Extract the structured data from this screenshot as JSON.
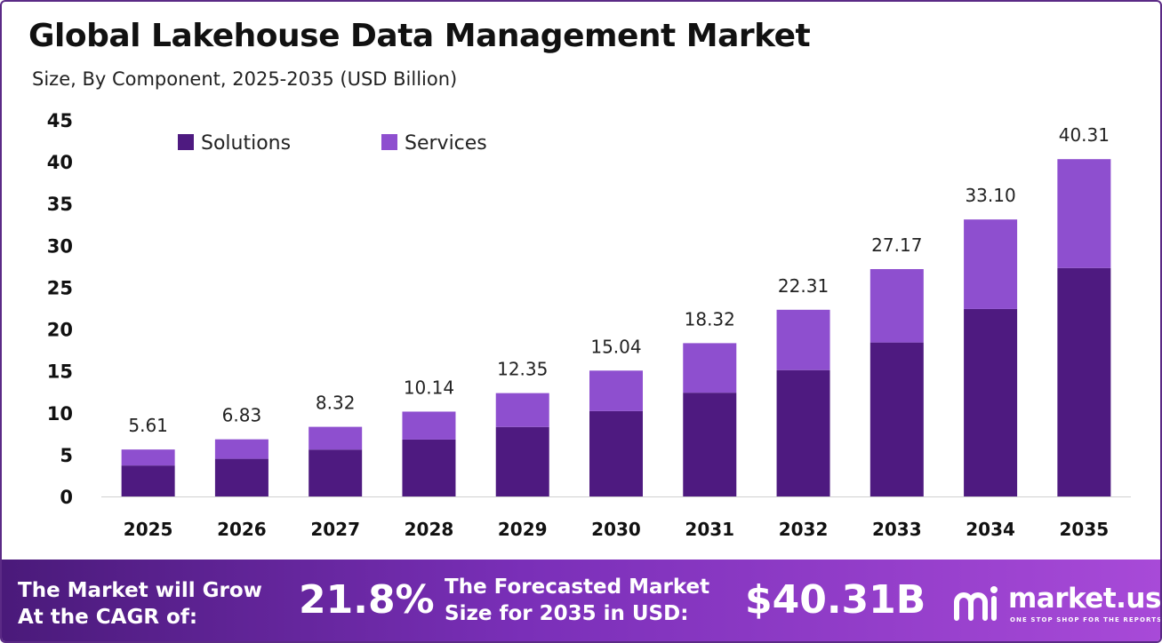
{
  "header": {
    "title": "Global Lakehouse Data Management Market",
    "subtitle": "Size, By Component, 2025-2035 (USD Billion)"
  },
  "colors": {
    "solutions": "#4e1a80",
    "services": "#8e4fcf",
    "frame": "#5b2a86"
  },
  "chart_data": {
    "type": "bar",
    "stacked": true,
    "categories": [
      "2025",
      "2026",
      "2027",
      "2028",
      "2029",
      "2030",
      "2031",
      "2032",
      "2033",
      "2034",
      "2035"
    ],
    "series": [
      {
        "name": "Solutions",
        "values": [
          3.7,
          4.5,
          5.6,
          6.8,
          8.3,
          10.2,
          12.4,
          15.1,
          18.4,
          22.4,
          27.3
        ]
      },
      {
        "name": "Services",
        "values": [
          1.91,
          2.33,
          2.72,
          3.34,
          4.05,
          4.84,
          5.92,
          7.21,
          8.77,
          10.7,
          13.01
        ]
      }
    ],
    "totals": [
      "5.61",
      "6.83",
      "8.32",
      "10.14",
      "12.35",
      "15.04",
      "18.32",
      "22.31",
      "27.17",
      "33.10",
      "40.31"
    ],
    "ylim": [
      0,
      45
    ],
    "yticks": [
      0,
      5,
      10,
      15,
      20,
      25,
      30,
      35,
      40,
      45
    ],
    "legend_position": "top-left",
    "grid": false
  },
  "footer": {
    "cagr_label_line1": "The Market will Grow",
    "cagr_label_line2": "At the CAGR of:",
    "cagr_value": "21.8%",
    "forecast_label_line1": "The Forecasted Market",
    "forecast_label_line2": "Size for 2035 in USD:",
    "forecast_value": "$40.31B",
    "brand_name": "market.us",
    "brand_tagline": "ONE STOP SHOP FOR THE REPORTS"
  }
}
